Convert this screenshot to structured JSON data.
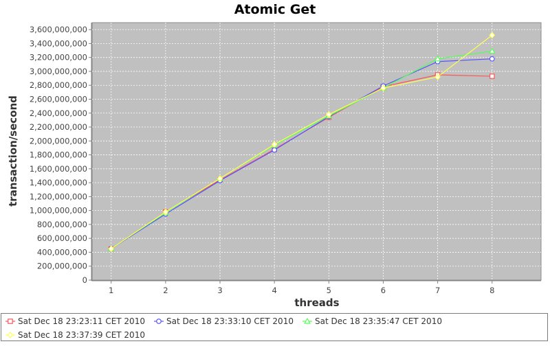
{
  "chart_data": {
    "type": "line",
    "title": "Atomic Get",
    "xlabel": "threads",
    "ylabel": "transaction/second",
    "x": [
      1,
      2,
      3,
      4,
      5,
      6,
      7,
      8
    ],
    "xlim": [
      0.65,
      8.9
    ],
    "ylim": [
      0,
      3700000000
    ],
    "yticks": [
      0,
      200000000,
      400000000,
      600000000,
      800000000,
      1000000000,
      1200000000,
      1400000000,
      1600000000,
      1800000000,
      2000000000,
      2200000000,
      2400000000,
      2600000000,
      2800000000,
      3000000000,
      3200000000,
      3400000000,
      3600000000
    ],
    "ytick_labels": [
      "0",
      "200,000,000",
      "400,000,000",
      "600,000,000",
      "800,000,000",
      "1,000,000,000",
      "1,200,000,000",
      "1,400,000,000",
      "1,600,000,000",
      "1,800,000,000",
      "2,000,000,000",
      "2,200,000,000",
      "2,400,000,000",
      "2,600,000,000",
      "2,800,000,000",
      "3,000,000,000",
      "3,200,000,000",
      "3,400,000,000",
      "3,600,000,000"
    ],
    "xtick_labels": [
      "1",
      "2",
      "3",
      "4",
      "5",
      "6",
      "7",
      "8"
    ],
    "grid": true,
    "legend_position": "bottom",
    "colors": {
      "plot_background": "#c0c0c0",
      "grid": "#ffffff"
    },
    "series": [
      {
        "name": "Sat Dec 18 23:23:11 CET 2010",
        "color": "#ff5555",
        "marker": "square",
        "values": [
          450000000,
          980000000,
          1440000000,
          1880000000,
          2340000000,
          2780000000,
          2950000000,
          2930000000
        ]
      },
      {
        "name": "Sat Dec 18 23:33:10 CET 2010",
        "color": "#5555ff",
        "marker": "circle",
        "values": [
          450000000,
          950000000,
          1430000000,
          1870000000,
          2350000000,
          2790000000,
          3140000000,
          3180000000
        ]
      },
      {
        "name": "Sat Dec 18 23:35:47 CET 2010",
        "color": "#55ff55",
        "marker": "triangle",
        "values": [
          450000000,
          970000000,
          1460000000,
          1940000000,
          2360000000,
          2760000000,
          3180000000,
          3290000000
        ]
      },
      {
        "name": "Sat Dec 18 23:37:39 CET 2010",
        "color": "#ffff55",
        "marker": "diamond",
        "values": [
          450000000,
          980000000,
          1460000000,
          1950000000,
          2380000000,
          2760000000,
          2920000000,
          3520000000
        ]
      }
    ]
  }
}
